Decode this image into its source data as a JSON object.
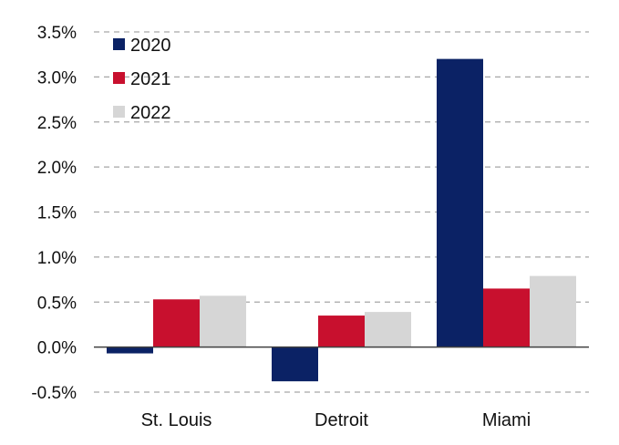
{
  "chart_data": {
    "type": "bar",
    "categories": [
      "St. Louis",
      "Detroit",
      "Miami"
    ],
    "series": [
      {
        "name": "2020",
        "values": [
          -0.07,
          -0.38,
          3.2
        ],
        "color": "#0b2265"
      },
      {
        "name": "2021",
        "values": [
          0.53,
          0.35,
          0.65
        ],
        "color": "#c8102e"
      },
      {
        "name": "2022",
        "values": [
          0.57,
          0.39,
          0.79
        ],
        "color": "#d6d6d6"
      }
    ],
    "ylim": [
      -0.5,
      3.5
    ],
    "yticks": [
      3.5,
      3.0,
      2.5,
      2.0,
      1.5,
      1.0,
      0.5,
      0.0,
      -0.5
    ],
    "ytick_labels": [
      "3.5%",
      "3.0%",
      "2.5%",
      "2.0%",
      "1.5%",
      "1.0%",
      "0.5%",
      "0.0%",
      "-0.5%"
    ],
    "title": "",
    "xlabel": "",
    "ylabel": "",
    "grid": "horizontal dashed",
    "legend_position": "top-left",
    "gridline_color": "#a6a6a6",
    "axis_color": "#404040"
  }
}
